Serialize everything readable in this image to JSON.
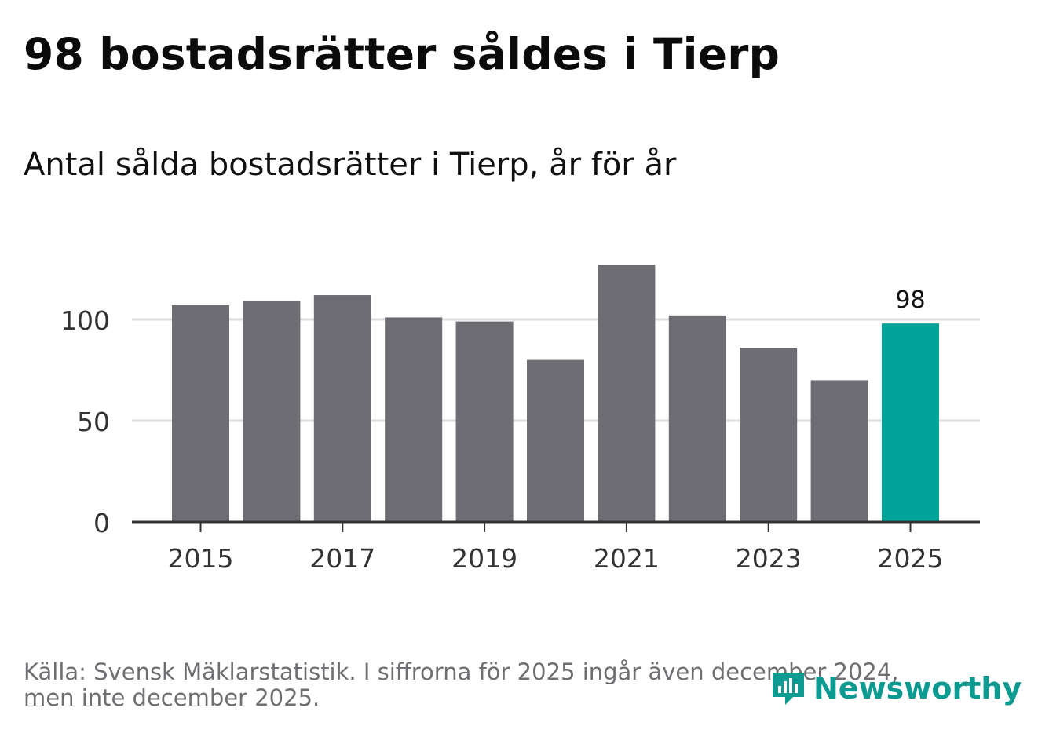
{
  "title": "98 bostadsrätter såldes i Tierp",
  "subtitle": "Antal sålda bostadsrätter i Tierp, år för år",
  "footer": {
    "source_line1": "Källa: Svensk Mäklarstatistik. I siffrorna för 2025 ingår även december 2024,",
    "source_line2": "men inte december 2025."
  },
  "logo": {
    "text": "Newsworthy",
    "icon": "bar-chart-speech-bubble-icon"
  },
  "colors": {
    "bar_default": "#6e6d73",
    "bar_highlight": "#00a499",
    "gridline": "#dddddd",
    "axis": "#333333",
    "tick_text": "#333333",
    "brand": "#0d9a91"
  },
  "chart_data": {
    "type": "bar",
    "title": "98 bostadsrätter såldes i Tierp",
    "subtitle": "Antal sålda bostadsrätter i Tierp, år för år",
    "xlabel": "",
    "ylabel": "",
    "categories": [
      "2015",
      "2016",
      "2017",
      "2018",
      "2019",
      "2020",
      "2021",
      "2022",
      "2023",
      "2024",
      "2025"
    ],
    "values": [
      107,
      109,
      112,
      101,
      99,
      80,
      127,
      102,
      86,
      70,
      98
    ],
    "highlight_index": 10,
    "highlight_label": "98",
    "ylim": [
      0,
      130
    ],
    "yticks": [
      0,
      50,
      100
    ],
    "ytick_labels": [
      "0",
      "50",
      "100"
    ],
    "xtick_labels": [
      "2015",
      "2017",
      "2019",
      "2021",
      "2023",
      "2025"
    ],
    "grid": true,
    "legend": "none"
  }
}
